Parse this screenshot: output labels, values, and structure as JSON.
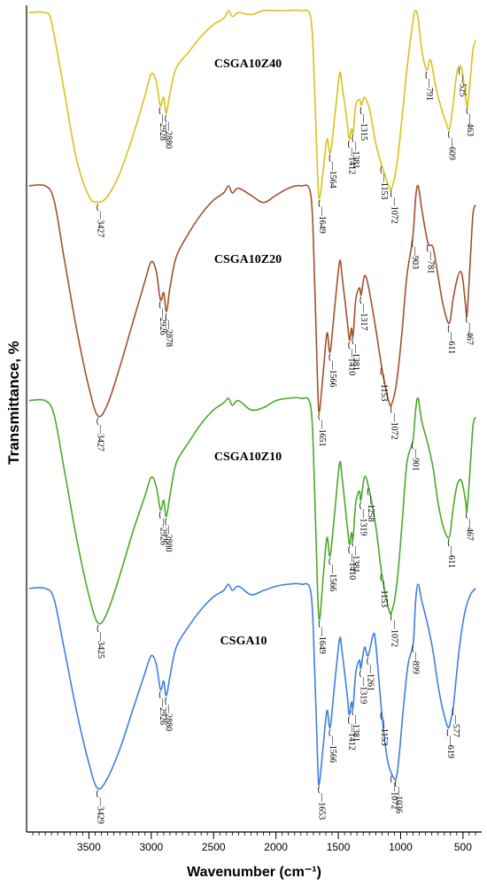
{
  "chart_data": {
    "type": "line",
    "title": "",
    "xlabel": "Wavenumber (cm⁻¹)",
    "ylabel": "Transmittance, %",
    "xlim": [
      4000,
      350
    ],
    "x_reversed": true,
    "x_ticks": [
      "3500",
      "3000",
      "2500",
      "2000",
      "1500",
      "1000",
      "500"
    ],
    "x_tick_values": [
      3500,
      3000,
      2500,
      2000,
      1500,
      1000,
      500
    ],
    "grid": false,
    "legend": "none",
    "series": [
      {
        "name": "CSGA10Z40",
        "color": "#d9c21a",
        "points": [
          [
            3980,
            99
          ],
          [
            3850,
            99
          ],
          [
            3800,
            94
          ],
          [
            3700,
            60
          ],
          [
            3600,
            25
          ],
          [
            3500,
            6
          ],
          [
            3427,
            3
          ],
          [
            3350,
            6
          ],
          [
            3250,
            18
          ],
          [
            3150,
            36
          ],
          [
            3050,
            57
          ],
          [
            3000,
            68
          ],
          [
            2960,
            64
          ],
          [
            2928,
            52
          ],
          [
            2900,
            56
          ],
          [
            2880,
            48
          ],
          [
            2850,
            58
          ],
          [
            2800,
            71
          ],
          [
            2700,
            79
          ],
          [
            2600,
            87
          ],
          [
            2500,
            93
          ],
          [
            2420,
            96
          ],
          [
            2380,
            100
          ],
          [
            2350,
            97
          ],
          [
            2300,
            99
          ],
          [
            2200,
            98
          ],
          [
            2100,
            100
          ],
          [
            2000,
            100
          ],
          [
            1900,
            100
          ],
          [
            1800,
            100
          ],
          [
            1720,
            96
          ],
          [
            1690,
            60
          ],
          [
            1665,
            15
          ],
          [
            1649,
            5
          ],
          [
            1620,
            20
          ],
          [
            1590,
            35
          ],
          [
            1564,
            28
          ],
          [
            1530,
            45
          ],
          [
            1490,
            68
          ],
          [
            1470,
            62
          ],
          [
            1430,
            44
          ],
          [
            1412,
            35
          ],
          [
            1395,
            40
          ],
          [
            1381,
            38
          ],
          [
            1360,
            52
          ],
          [
            1330,
            55
          ],
          [
            1315,
            52
          ],
          [
            1290,
            56
          ],
          [
            1250,
            50
          ],
          [
            1200,
            33
          ],
          [
            1153,
            22
          ],
          [
            1100,
            12
          ],
          [
            1072,
            10
          ],
          [
            1030,
            22
          ],
          [
            990,
            45
          ],
          [
            950,
            70
          ],
          [
            900,
            95
          ],
          [
            880,
            100
          ],
          [
            860,
            96
          ],
          [
            830,
            80
          ],
          [
            791,
            70
          ],
          [
            760,
            75
          ],
          [
            720,
            62
          ],
          [
            680,
            52
          ],
          [
            640,
            44
          ],
          [
            609,
            40
          ],
          [
            580,
            52
          ],
          [
            550,
            68
          ],
          [
            525,
            72
          ],
          [
            505,
            69
          ],
          [
            480,
            56
          ],
          [
            463,
            52
          ],
          [
            440,
            66
          ],
          [
            420,
            80
          ],
          [
            400,
            85
          ]
        ],
        "peaks": [
          "3427",
          "2928",
          "2880",
          "1649",
          "1564",
          "1412",
          "1381",
          "1315",
          "1153",
          "1072",
          "791",
          "609",
          "525",
          "463"
        ]
      },
      {
        "name": "CSGA10Z20",
        "color": "#a0522d",
        "points": [
          [
            3980,
            100
          ],
          [
            3850,
            100
          ],
          [
            3780,
            94
          ],
          [
            3700,
            70
          ],
          [
            3600,
            40
          ],
          [
            3500,
            15
          ],
          [
            3427,
            3
          ],
          [
            3350,
            8
          ],
          [
            3250,
            24
          ],
          [
            3150,
            42
          ],
          [
            3050,
            60
          ],
          [
            3000,
            68
          ],
          [
            2960,
            64
          ],
          [
            2926,
            52
          ],
          [
            2900,
            55
          ],
          [
            2878,
            47
          ],
          [
            2850,
            57
          ],
          [
            2800,
            70
          ],
          [
            2700,
            80
          ],
          [
            2600,
            88
          ],
          [
            2500,
            94
          ],
          [
            2420,
            97
          ],
          [
            2380,
            100
          ],
          [
            2350,
            97
          ],
          [
            2300,
            99
          ],
          [
            2200,
            96
          ],
          [
            2100,
            93
          ],
          [
            2000,
            96
          ],
          [
            1900,
            99
          ],
          [
            1800,
            100
          ],
          [
            1720,
            96
          ],
          [
            1690,
            60
          ],
          [
            1665,
            15
          ],
          [
            1651,
            5
          ],
          [
            1620,
            22
          ],
          [
            1590,
            38
          ],
          [
            1566,
            30
          ],
          [
            1530,
            48
          ],
          [
            1490,
            68
          ],
          [
            1470,
            62
          ],
          [
            1430,
            44
          ],
          [
            1410,
            35
          ],
          [
            1395,
            40
          ],
          [
            1381,
            37
          ],
          [
            1360,
            52
          ],
          [
            1330,
            57
          ],
          [
            1317,
            54
          ],
          [
            1290,
            62
          ],
          [
            1260,
            58
          ],
          [
            1200,
            40
          ],
          [
            1153,
            24
          ],
          [
            1100,
            10
          ],
          [
            1072,
            8
          ],
          [
            1030,
            18
          ],
          [
            990,
            38
          ],
          [
            950,
            62
          ],
          [
            903,
            78
          ],
          [
            880,
            95
          ],
          [
            860,
            100
          ],
          [
            830,
            90
          ],
          [
            781,
            76
          ],
          [
            740,
            74
          ],
          [
            700,
            62
          ],
          [
            660,
            50
          ],
          [
            611,
            42
          ],
          [
            580,
            52
          ],
          [
            550,
            60
          ],
          [
            520,
            64
          ],
          [
            500,
            60
          ],
          [
            480,
            50
          ],
          [
            467,
            46
          ],
          [
            440,
            70
          ],
          [
            420,
            88
          ],
          [
            400,
            92
          ]
        ],
        "peaks": [
          "3427",
          "2926",
          "2878",
          "1651",
          "1566",
          "1410",
          "1381",
          "1317",
          "1153",
          "1072",
          "903",
          "781",
          "611",
          "467"
        ]
      },
      {
        "name": "CSGA10Z10",
        "color": "#4ca82a",
        "points": [
          [
            3980,
            99
          ],
          [
            3850,
            99
          ],
          [
            3780,
            93
          ],
          [
            3700,
            70
          ],
          [
            3600,
            40
          ],
          [
            3500,
            15
          ],
          [
            3425,
            3
          ],
          [
            3350,
            8
          ],
          [
            3250,
            24
          ],
          [
            3150,
            42
          ],
          [
            3050,
            58
          ],
          [
            3000,
            66
          ],
          [
            2960,
            62
          ],
          [
            2926,
            52
          ],
          [
            2900,
            56
          ],
          [
            2880,
            49
          ],
          [
            2850,
            58
          ],
          [
            2800,
            72
          ],
          [
            2700,
            81
          ],
          [
            2600,
            89
          ],
          [
            2500,
            95
          ],
          [
            2420,
            98
          ],
          [
            2380,
            100
          ],
          [
            2350,
            97
          ],
          [
            2300,
            99
          ],
          [
            2200,
            95
          ],
          [
            2100,
            96
          ],
          [
            2000,
            99
          ],
          [
            1900,
            100
          ],
          [
            1800,
            100
          ],
          [
            1720,
            96
          ],
          [
            1690,
            60
          ],
          [
            1665,
            15
          ],
          [
            1649,
            5
          ],
          [
            1620,
            24
          ],
          [
            1590,
            40
          ],
          [
            1566,
            32
          ],
          [
            1530,
            50
          ],
          [
            1490,
            72
          ],
          [
            1470,
            66
          ],
          [
            1430,
            46
          ],
          [
            1410,
            37
          ],
          [
            1395,
            42
          ],
          [
            1381,
            40
          ],
          [
            1360,
            55
          ],
          [
            1330,
            60
          ],
          [
            1319,
            56
          ],
          [
            1290,
            66
          ],
          [
            1258,
            62
          ],
          [
            1200,
            45
          ],
          [
            1153,
            25
          ],
          [
            1100,
            10
          ],
          [
            1072,
            8
          ],
          [
            1030,
            20
          ],
          [
            990,
            45
          ],
          [
            950,
            72
          ],
          [
            901,
            82
          ],
          [
            880,
            95
          ],
          [
            860,
            100
          ],
          [
            830,
            90
          ],
          [
            780,
            80
          ],
          [
            740,
            70
          ],
          [
            700,
            55
          ],
          [
            660,
            45
          ],
          [
            611,
            40
          ],
          [
            580,
            52
          ],
          [
            550,
            62
          ],
          [
            520,
            65
          ],
          [
            500,
            62
          ],
          [
            480,
            56
          ],
          [
            467,
            52
          ],
          [
            440,
            72
          ],
          [
            420,
            88
          ],
          [
            400,
            92
          ]
        ],
        "peaks": [
          "3425",
          "2926",
          "2880",
          "1649",
          "1566",
          "1410",
          "1381",
          "1319",
          "1258",
          "1153",
          "1072",
          "901",
          "611",
          "467"
        ]
      },
      {
        "name": "CSGA10",
        "color": "#3f7fe0",
        "points": [
          [
            3980,
            98
          ],
          [
            3850,
            98
          ],
          [
            3780,
            93
          ],
          [
            3700,
            70
          ],
          [
            3600,
            40
          ],
          [
            3500,
            15
          ],
          [
            3429,
            3
          ],
          [
            3350,
            8
          ],
          [
            3250,
            22
          ],
          [
            3150,
            40
          ],
          [
            3050,
            58
          ],
          [
            3000,
            66
          ],
          [
            2960,
            62
          ],
          [
            2926,
            50
          ],
          [
            2900,
            54
          ],
          [
            2880,
            47
          ],
          [
            2850,
            56
          ],
          [
            2800,
            70
          ],
          [
            2700,
            80
          ],
          [
            2600,
            88
          ],
          [
            2500,
            94
          ],
          [
            2420,
            97
          ],
          [
            2380,
            100
          ],
          [
            2350,
            97
          ],
          [
            2300,
            99
          ],
          [
            2200,
            95
          ],
          [
            2100,
            97
          ],
          [
            2000,
            99
          ],
          [
            1900,
            100
          ],
          [
            1800,
            100
          ],
          [
            1720,
            96
          ],
          [
            1690,
            60
          ],
          [
            1665,
            15
          ],
          [
            1653,
            5
          ],
          [
            1620,
            24
          ],
          [
            1590,
            40
          ],
          [
            1566,
            32
          ],
          [
            1530,
            52
          ],
          [
            1490,
            74
          ],
          [
            1470,
            68
          ],
          [
            1430,
            48
          ],
          [
            1412,
            38
          ],
          [
            1395,
            44
          ],
          [
            1381,
            42
          ],
          [
            1360,
            58
          ],
          [
            1330,
            64
          ],
          [
            1319,
            60
          ],
          [
            1290,
            70
          ],
          [
            1261,
            66
          ],
          [
            1220,
            76
          ],
          [
            1200,
            72
          ],
          [
            1153,
            40
          ],
          [
            1110,
            18
          ],
          [
            1072,
            10
          ],
          [
            1036,
            8
          ],
          [
            1010,
            20
          ],
          [
            980,
            40
          ],
          [
            940,
            62
          ],
          [
            899,
            72
          ],
          [
            880,
            92
          ],
          [
            860,
            100
          ],
          [
            830,
            92
          ],
          [
            780,
            80
          ],
          [
            740,
            68
          ],
          [
            700,
            52
          ],
          [
            660,
            40
          ],
          [
            619,
            32
          ],
          [
            600,
            35
          ],
          [
            577,
            42
          ],
          [
            550,
            58
          ],
          [
            520,
            74
          ],
          [
            480,
            88
          ],
          [
            440,
            95
          ],
          [
            400,
            98
          ]
        ],
        "peaks": [
          "3429",
          "2926",
          "2880",
          "1653",
          "1566",
          "1412",
          "1381",
          "1319",
          "1261",
          "1153",
          "1072",
          "1036",
          "899",
          "619",
          "577"
        ]
      }
    ]
  }
}
